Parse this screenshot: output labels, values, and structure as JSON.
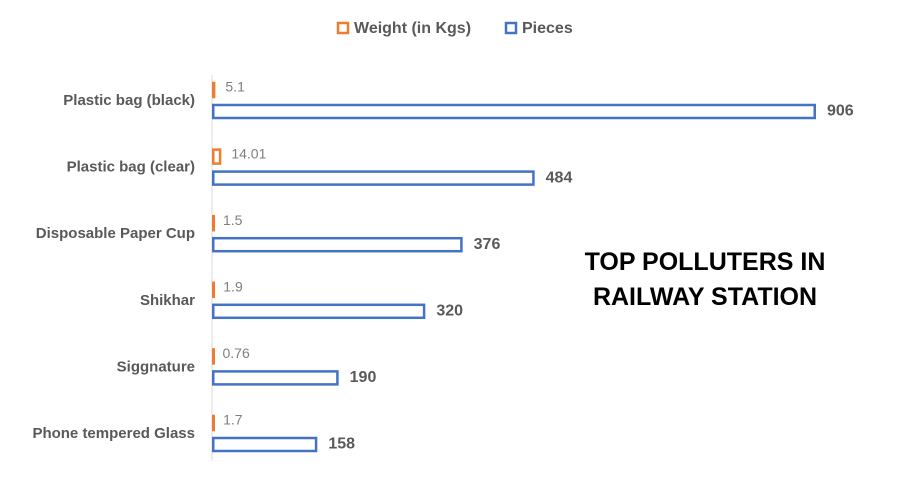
{
  "chart_data": {
    "type": "hbar",
    "title": "TOP POLLUTERS IN RAILWAY STATION",
    "categories": [
      "Plastic bag (black)",
      "Plastic bag (clear)",
      "Disposable Paper Cup",
      "Shikhar",
      "Siggnature",
      "Phone tempered Glass"
    ],
    "series": [
      {
        "name": "Weight (in Kgs)",
        "color": "#ED7D31",
        "values": [
          5.1,
          14.01,
          1.5,
          1.9,
          0.76,
          1.7
        ]
      },
      {
        "name": "Pieces",
        "color": "#4472C4",
        "values": [
          906,
          484,
          376,
          320,
          190,
          158
        ]
      }
    ],
    "legend": "top"
  }
}
